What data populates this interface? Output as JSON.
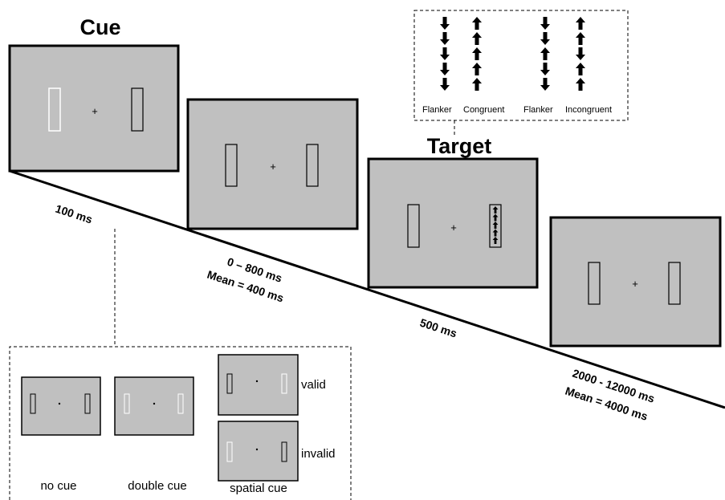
{
  "title_cue": "Cue",
  "title_target": "Target",
  "durations": {
    "cue": "100 ms",
    "isi_range": "0 – 800 ms",
    "isi_mean": "Mean = 400 ms",
    "target": "500 ms",
    "iti_range": "2000 - 12000 ms",
    "iti_mean": "Mean = 4000 ms"
  },
  "fixation": "+",
  "flanker_labels": {
    "congruent_flanker": "Flanker",
    "congruent": "Congruent",
    "incongruent_flanker": "Flanker",
    "incongruent": "Incongruent"
  },
  "cue_types": {
    "no_cue": "no cue",
    "double_cue": "double cue",
    "spatial_cue": "spatial cue",
    "valid": "valid",
    "invalid": "invalid"
  },
  "colors": {
    "screen": "#c0c0c0",
    "highlight": "#ffffff",
    "ink": "#000000"
  }
}
